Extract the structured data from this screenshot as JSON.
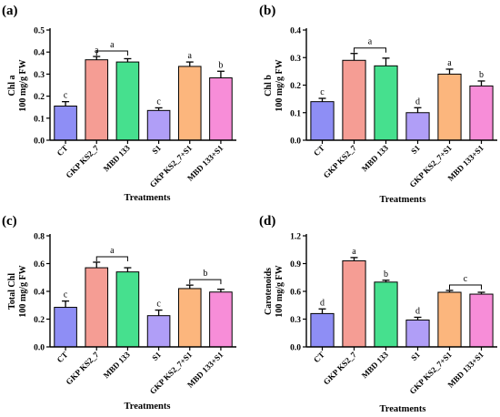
{
  "chart_data": [
    {
      "type": "bar",
      "panel_label": "(a)",
      "ylabel": [
        "Chl a",
        "100 mg/g FW"
      ],
      "xlabel": "Treatments",
      "ylim": [
        0.0,
        0.5
      ],
      "yticks": [
        0.0,
        0.1,
        0.2,
        0.3,
        0.4,
        0.5
      ],
      "ytick_labels": [
        "0.0",
        "0.1",
        "0.2",
        "0.3",
        "0.4",
        "0.5"
      ],
      "categories": [
        "CT",
        "GKP KS2_7",
        "MBD 133",
        "S1",
        "GKP KS2_7+S1",
        "MBD 133+S1"
      ],
      "values": [
        0.155,
        0.365,
        0.355,
        0.135,
        0.335,
        0.283
      ],
      "errors": [
        0.02,
        0.015,
        0.015,
        0.012,
        0.02,
        0.03
      ],
      "letters": [
        "c",
        "a",
        "",
        "c",
        "a",
        "b"
      ],
      "groups": [
        {
          "from": 1,
          "to": 2,
          "letter": "a"
        }
      ],
      "colors": [
        "#8e8ef5",
        "#f59d94",
        "#46e08e",
        "#b09ef7",
        "#fcb67d",
        "#f78dd8"
      ]
    },
    {
      "type": "bar",
      "panel_label": "(b)",
      "ylabel": [
        "Chl b",
        "100 mg/g FW"
      ],
      "xlabel": "Treatments",
      "ylim": [
        0.0,
        0.4
      ],
      "yticks": [
        0.0,
        0.1,
        0.2,
        0.3,
        0.4
      ],
      "ytick_labels": [
        "0.0",
        "0.1",
        "0.2",
        "0.3",
        "0.4"
      ],
      "categories": [
        "CT",
        "GKP KS2_7",
        "MBD 133",
        "S1",
        "GKP KS2_7+S1",
        "MBD 133+S1"
      ],
      "values": [
        0.14,
        0.29,
        0.27,
        0.1,
        0.24,
        0.197
      ],
      "errors": [
        0.012,
        0.025,
        0.028,
        0.018,
        0.018,
        0.018
      ],
      "letters": [
        "c",
        "",
        "",
        "d",
        "a",
        "b"
      ],
      "groups": [
        {
          "from": 1,
          "to": 2,
          "letter": "a"
        }
      ],
      "colors": [
        "#8e8ef5",
        "#f59d94",
        "#46e08e",
        "#b09ef7",
        "#fcb67d",
        "#f78dd8"
      ]
    },
    {
      "type": "bar",
      "panel_label": "(c)",
      "ylabel": [
        "Total Chl",
        "100 mg/g FW"
      ],
      "xlabel": "Treatments",
      "ylim": [
        0.0,
        0.8
      ],
      "yticks": [
        0.0,
        0.2,
        0.4,
        0.6,
        0.8
      ],
      "ytick_labels": [
        "0.0",
        "0.2",
        "0.4",
        "0.6",
        "0.8"
      ],
      "categories": [
        "CT",
        "GKP KS2_7",
        "MBD 133",
        "S1",
        "GKP KS2_7+S1",
        "MBD 133+S1"
      ],
      "values": [
        0.285,
        0.57,
        0.54,
        0.225,
        0.42,
        0.395
      ],
      "errors": [
        0.045,
        0.04,
        0.03,
        0.04,
        0.025,
        0.02
      ],
      "letters": [
        "c",
        "",
        "",
        "c",
        "",
        ""
      ],
      "groups": [
        {
          "from": 1,
          "to": 2,
          "letter": "a"
        },
        {
          "from": 4,
          "to": 5,
          "letter": "b"
        }
      ],
      "colors": [
        "#8e8ef5",
        "#f59d94",
        "#46e08e",
        "#b09ef7",
        "#fcb67d",
        "#f78dd8"
      ]
    },
    {
      "type": "bar",
      "panel_label": "(d)",
      "ylabel": [
        "Carotenoids",
        "100 mg/g FW"
      ],
      "xlabel": "Treatments",
      "ylim": [
        0.0,
        1.2
      ],
      "yticks": [
        0.0,
        0.3,
        0.6,
        0.9,
        1.2
      ],
      "ytick_labels": [
        "0.0",
        "0.3",
        "0.6",
        "0.9",
        "1.2"
      ],
      "categories": [
        "CT",
        "GKP KS2_7",
        "MBD 133",
        "S1",
        "GKP KS2_7+S1",
        "MBD 133+S1"
      ],
      "values": [
        0.36,
        0.93,
        0.7,
        0.29,
        0.59,
        0.57
      ],
      "errors": [
        0.05,
        0.035,
        0.02,
        0.03,
        0.02,
        0.02
      ],
      "letters": [
        "d",
        "a",
        "b",
        "d",
        "",
        ""
      ],
      "groups": [
        {
          "from": 4,
          "to": 5,
          "letter": "c"
        }
      ],
      "colors": [
        "#8e8ef5",
        "#f59d94",
        "#46e08e",
        "#b09ef7",
        "#fcb67d",
        "#f78dd8"
      ]
    }
  ]
}
